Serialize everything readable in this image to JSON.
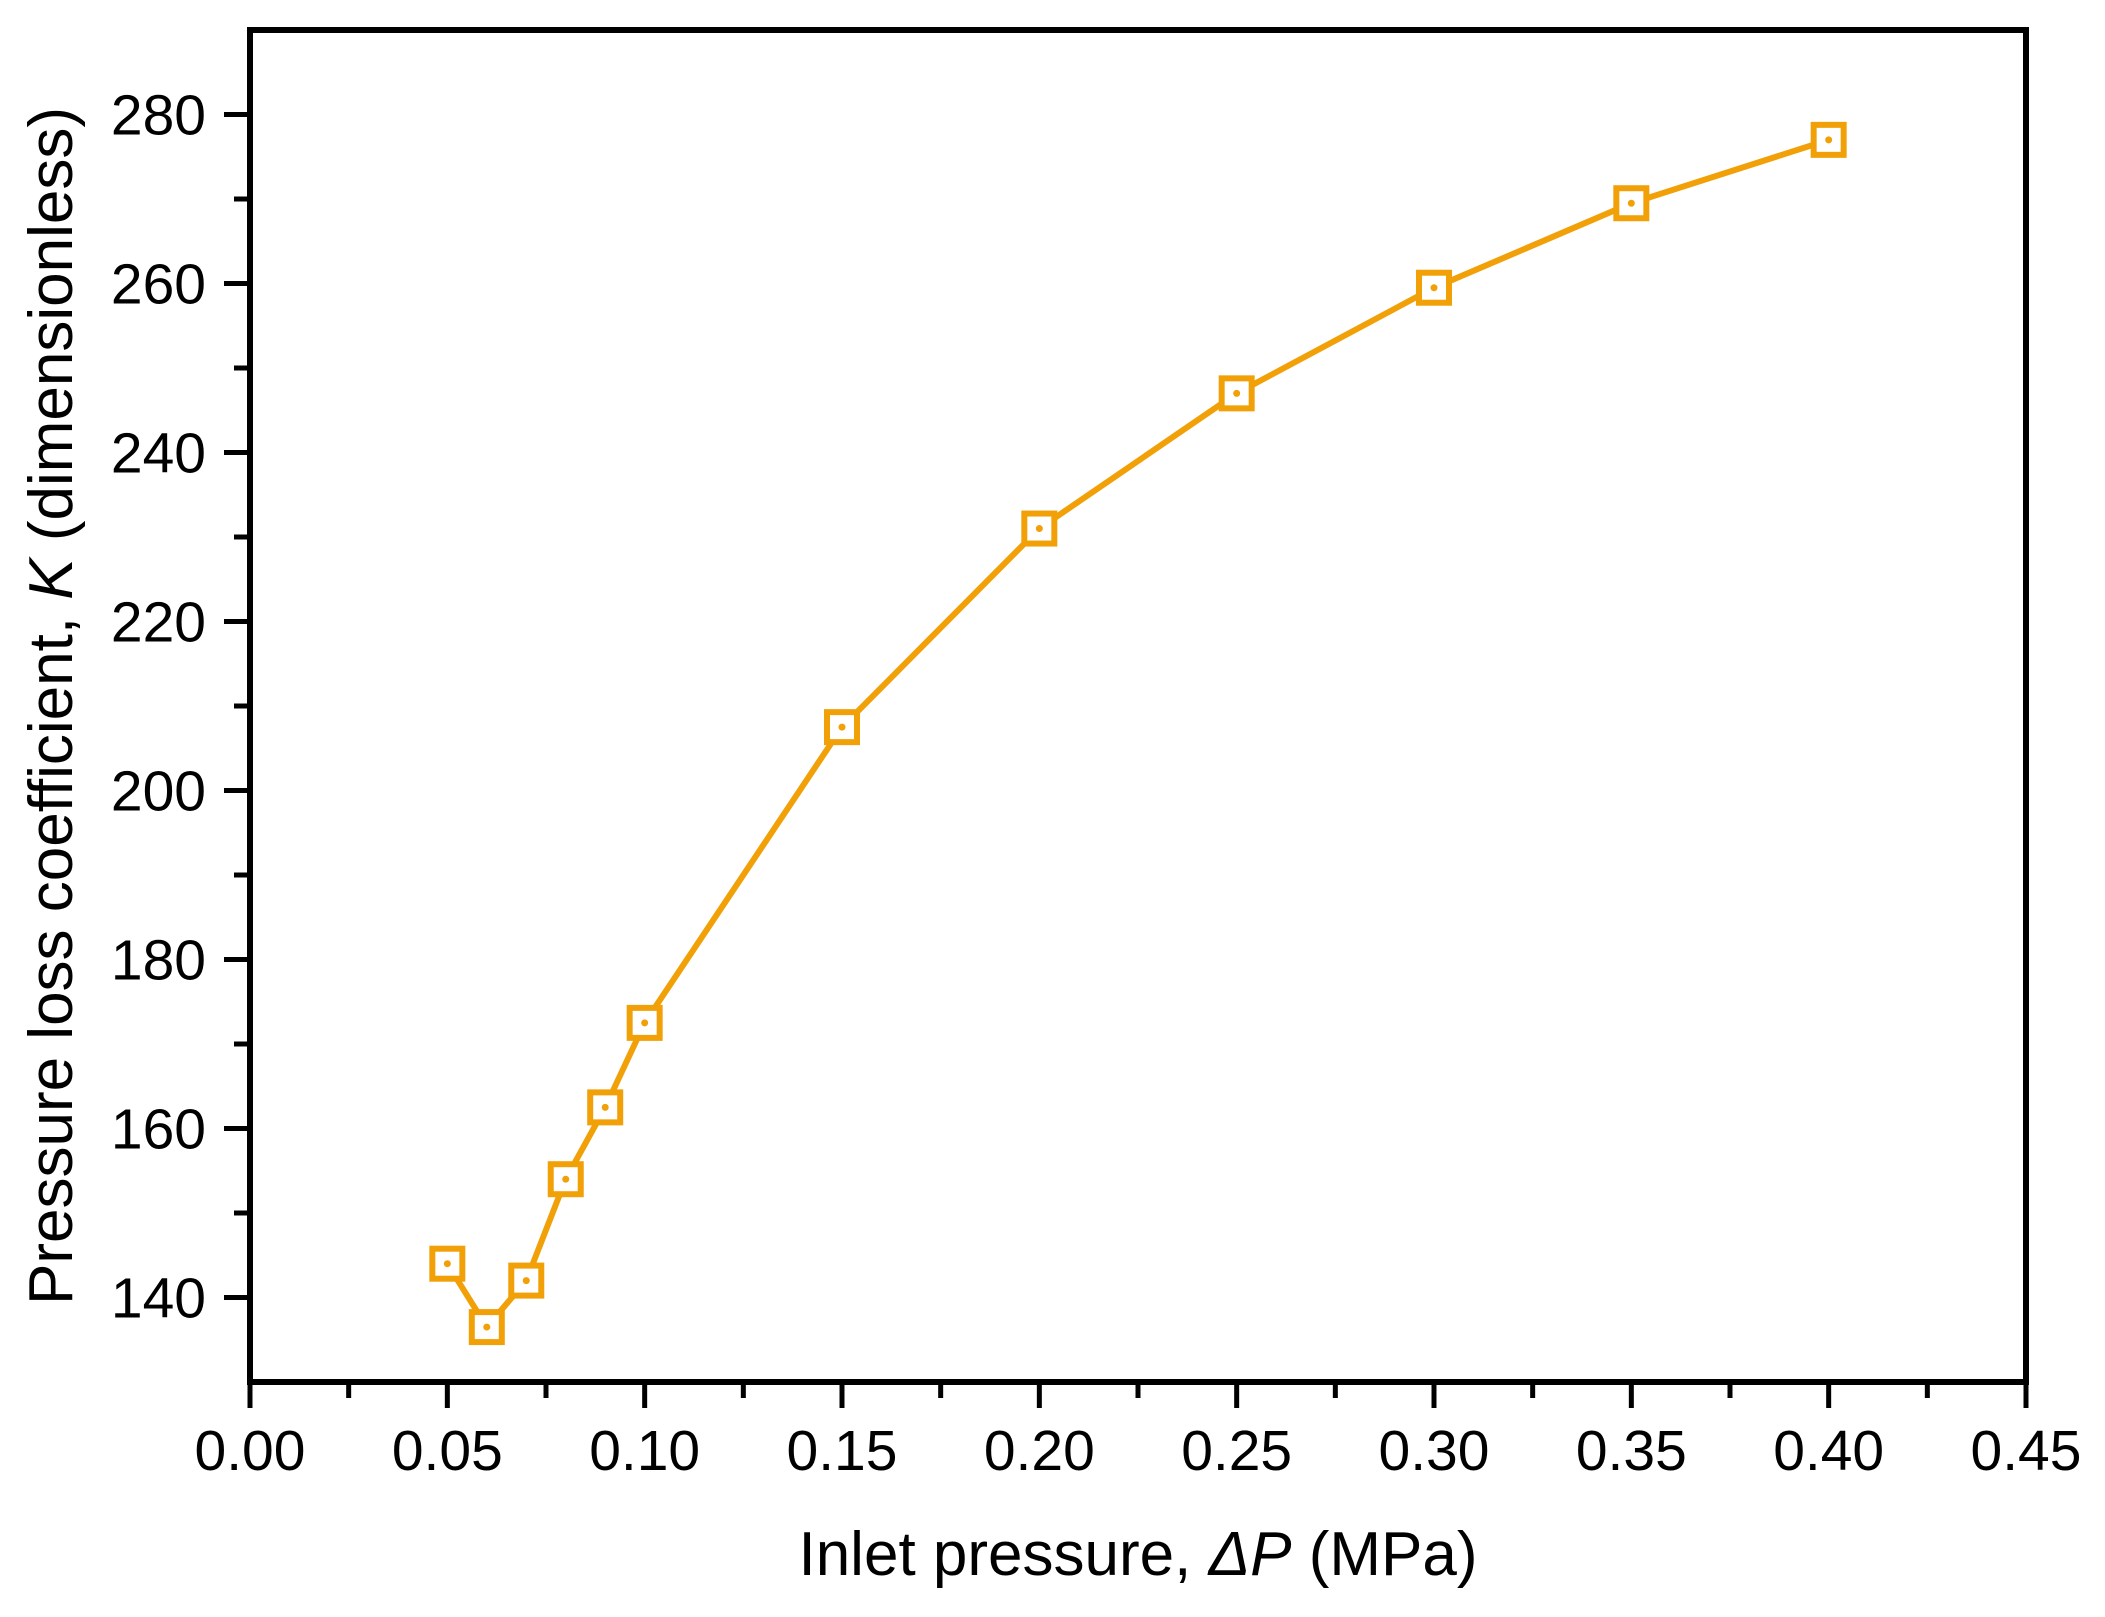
{
  "chart_data": {
    "type": "line",
    "title": "",
    "x": [
      0.05,
      0.06,
      0.07,
      0.08,
      0.09,
      0.1,
      0.15,
      0.2,
      0.25,
      0.3,
      0.35,
      0.4
    ],
    "y": [
      144,
      136.5,
      142,
      154,
      162.5,
      172.5,
      207.5,
      231,
      247,
      259.5,
      269.5,
      277
    ],
    "xlabel": {
      "prefix": "Inlet pressure, ",
      "italic": "ΔP",
      "suffix": " (MPa)"
    },
    "ylabel": {
      "prefix": "Pressure loss coefficient, ",
      "italic": "K",
      "suffix": " (dimensionless)"
    },
    "xlim": [
      0.0,
      0.45
    ],
    "ylim": [
      130,
      290
    ],
    "x_major_ticks": [
      0.0,
      0.05,
      0.1,
      0.15,
      0.2,
      0.25,
      0.3,
      0.35,
      0.4,
      0.45
    ],
    "x_tick_labels": [
      "0.00",
      "0.05",
      "0.10",
      "0.15",
      "0.20",
      "0.25",
      "0.30",
      "0.35",
      "0.40",
      "0.45"
    ],
    "x_minor_ticks": [
      0.025,
      0.075,
      0.125,
      0.175,
      0.225,
      0.275,
      0.325,
      0.375,
      0.425
    ],
    "y_major_ticks": [
      140,
      160,
      180,
      200,
      220,
      240,
      260,
      280
    ],
    "y_tick_labels": [
      "140",
      "160",
      "180",
      "200",
      "220",
      "240",
      "260",
      "280"
    ],
    "y_minor_ticks": [
      150,
      170,
      190,
      210,
      230,
      250,
      270
    ],
    "grid": false,
    "legend": null,
    "marker": "open-square-center-dot",
    "colors": {
      "series": "#F1A107",
      "marker_fill": "#FFFFFF",
      "axis": "#000000",
      "text": "#000000",
      "background": "#FFFFFF"
    }
  }
}
